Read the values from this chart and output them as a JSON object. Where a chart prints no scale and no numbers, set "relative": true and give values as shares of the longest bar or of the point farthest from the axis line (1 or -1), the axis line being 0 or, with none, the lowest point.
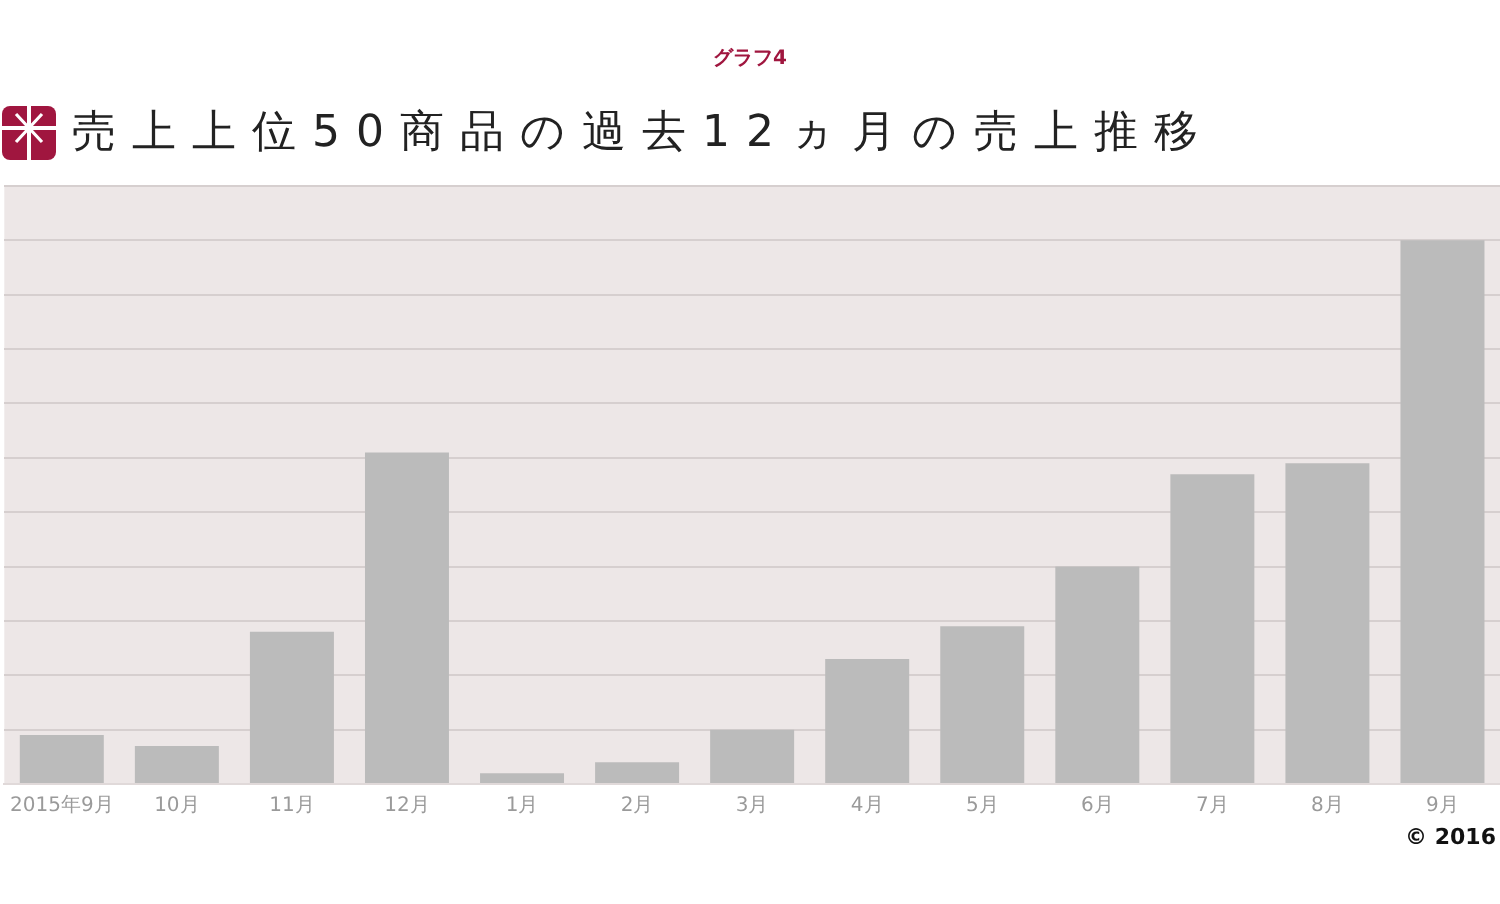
{
  "chart_data": {
    "type": "bar",
    "title": "売上上位50商品の過去12ヵ月の売上推移",
    "subtitle": "グラフ4",
    "categories": [
      "2015年9月",
      "10月",
      "11月",
      "12月",
      "1月",
      "2月",
      "3月",
      "4月",
      "5月",
      "6月",
      "7月",
      "8月",
      "9月"
    ],
    "values": [
      0.09,
      0.07,
      0.28,
      0.61,
      0.02,
      0.04,
      0.1,
      0.23,
      0.29,
      0.4,
      0.57,
      0.59,
      1
    ],
    "color": "#bbbbbb",
    "relative": true,
    "grid": "y",
    "annotations": [
      "© 2016"
    ]
  }
}
